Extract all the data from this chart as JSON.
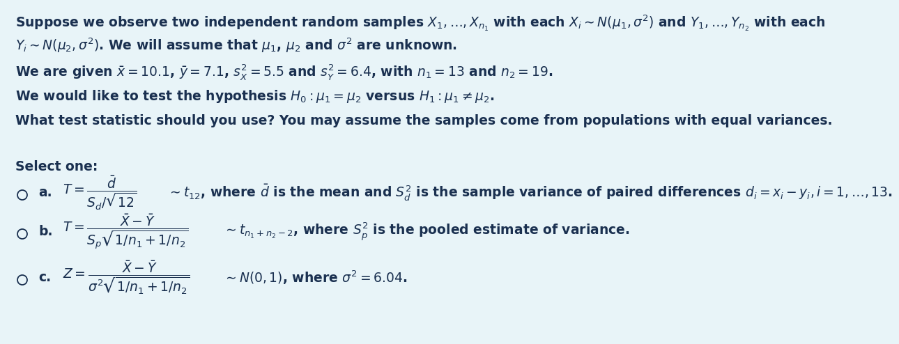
{
  "bg_color": "#e8f4f8",
  "text_color": "#1a3050",
  "font_size_main": 13.5,
  "font_size_options": 13.5,
  "line1": "Suppose we observe two independent random samples $X_1, \\ldots, X_{n_1}$ with each $X_i \\sim N(\\mu_1, \\sigma^2)$ and $Y_1, \\ldots, Y_{n_2}$ with each",
  "line2": "$Y_i \\sim N(\\mu_2, \\sigma^2)$. We will assume that $\\mu_1$, $\\mu_2$ and $\\sigma^2$ are unknown.",
  "line3": "We are given $\\bar{x} = 10.1$, $\\bar{y} = 7.1$, $s_X^2 = 5.5$ and $s_Y^2 = 6.4$, with $n_1 = 13$ and $n_2 = 19$.",
  "line4": "We would like to test the hypothesis $H_0 : \\mu_1 = \\mu_2$ versus $H_1 : \\mu_1 \\neq \\mu_2$.",
  "line5": "What test statistic should you use? You may assume the samples come from populations with equal variances.",
  "select_one": "Select one:",
  "opt_a_formula": "$T = \\dfrac{\\bar{d}}{S_d/\\sqrt{12}}$",
  "opt_a_tail": "$\\sim t_{12}$, where $\\bar{d}$ is the mean and $S_d^2$ is the sample variance of paired differences $d_i = x_i - y_i, i = 1, \\ldots, 13$.",
  "opt_b_formula": "$T = \\dfrac{\\bar{X}-\\bar{Y}}{S_p\\sqrt{1/n_1+1/n_2}}$",
  "opt_b_tail": "$\\sim t_{n_1+n_2-2}$, where $S_p^2$ is the pooled estimate of variance.",
  "opt_c_formula": "$Z = \\dfrac{\\bar{X}-\\bar{Y}}{\\sigma^2\\sqrt{1/n_1+1/n_2}}$",
  "opt_c_tail": "$\\sim N(0, 1)$, where $\\sigma^2 = 6.04$."
}
